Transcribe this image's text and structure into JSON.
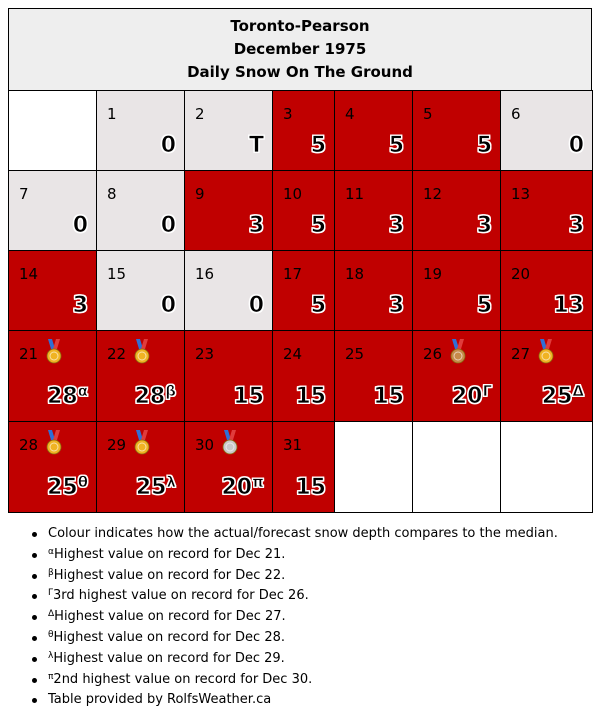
{
  "title": {
    "station": "Toronto-Pearson",
    "month": "December 1975",
    "subtitle": "Daily Snow On The Ground"
  },
  "colors": {
    "above_median": "#c00000",
    "below_median": "#e9e5e6",
    "empty": "#ffffff",
    "header": "#eeeeee"
  },
  "days": [
    {
      "day": "1",
      "value": "0",
      "status": "below"
    },
    {
      "day": "2",
      "value": "T",
      "status": "below"
    },
    {
      "day": "3",
      "value": "5",
      "status": "above"
    },
    {
      "day": "4",
      "value": "5",
      "status": "above"
    },
    {
      "day": "5",
      "value": "5",
      "status": "above"
    },
    {
      "day": "6",
      "value": "0",
      "status": "below"
    },
    {
      "day": "7",
      "value": "0",
      "status": "below"
    },
    {
      "day": "8",
      "value": "0",
      "status": "below"
    },
    {
      "day": "9",
      "value": "3",
      "status": "above"
    },
    {
      "day": "10",
      "value": "5",
      "status": "above"
    },
    {
      "day": "11",
      "value": "3",
      "status": "above"
    },
    {
      "day": "12",
      "value": "3",
      "status": "above"
    },
    {
      "day": "13",
      "value": "3",
      "status": "above"
    },
    {
      "day": "14",
      "value": "3",
      "status": "above"
    },
    {
      "day": "15",
      "value": "0",
      "status": "below"
    },
    {
      "day": "16",
      "value": "0",
      "status": "below"
    },
    {
      "day": "17",
      "value": "5",
      "status": "above"
    },
    {
      "day": "18",
      "value": "3",
      "status": "above"
    },
    {
      "day": "19",
      "value": "5",
      "status": "above"
    },
    {
      "day": "20",
      "value": "13",
      "status": "above"
    },
    {
      "day": "21",
      "value": "28",
      "sup": "α",
      "status": "above",
      "medal": "gold"
    },
    {
      "day": "22",
      "value": "28",
      "sup": "β",
      "status": "above",
      "medal": "gold"
    },
    {
      "day": "23",
      "value": "15",
      "status": "above"
    },
    {
      "day": "24",
      "value": "15",
      "status": "above"
    },
    {
      "day": "25",
      "value": "15",
      "status": "above"
    },
    {
      "day": "26",
      "value": "20",
      "sup": "Γ",
      "status": "above",
      "medal": "bronze"
    },
    {
      "day": "27",
      "value": "25",
      "sup": "Δ",
      "status": "above",
      "medal": "gold"
    },
    {
      "day": "28",
      "value": "25",
      "sup": "θ",
      "status": "above",
      "medal": "gold"
    },
    {
      "day": "29",
      "value": "25",
      "sup": "λ",
      "status": "above",
      "medal": "gold"
    },
    {
      "day": "30",
      "value": "20",
      "sup": "π",
      "status": "above",
      "medal": "silver"
    },
    {
      "day": "31",
      "value": "15",
      "status": "above"
    }
  ],
  "notes": [
    {
      "sup": "",
      "text": "Colour indicates how the actual/forecast snow depth compares to the median."
    },
    {
      "sup": "α",
      "text": "Highest value on record for Dec 21."
    },
    {
      "sup": "β",
      "text": "Highest value on record for Dec 22."
    },
    {
      "sup": "Γ",
      "text": "3rd highest value on record for Dec 26."
    },
    {
      "sup": "Δ",
      "text": "Highest value on record for Dec 27."
    },
    {
      "sup": "θ",
      "text": "Highest value on record for Dec 28."
    },
    {
      "sup": "λ",
      "text": "Highest value on record for Dec 29."
    },
    {
      "sup": "π",
      "text": "2nd highest value on record for Dec 30."
    },
    {
      "sup": "",
      "text": "Table provided by RolfsWeather.ca"
    }
  ]
}
